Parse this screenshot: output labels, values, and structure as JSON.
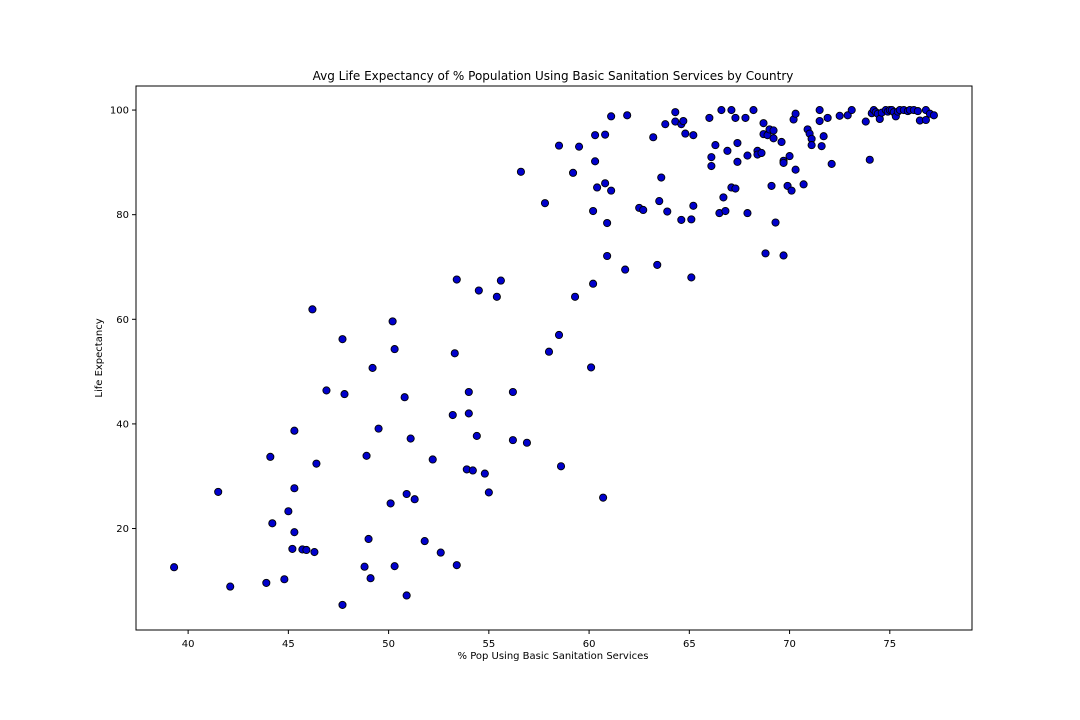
{
  "chart_data": {
    "type": "scatter",
    "title": "Avg Life Expectancy of % Population Using Basic Sanitation Services by Country",
    "xlabel": "% Pop Using Basic Sanitation Services",
    "ylabel": "Life Expectancy",
    "xlim": [
      37.4,
      79.1
    ],
    "ylim": [
      0.6,
      104.6
    ],
    "xticks": [
      40,
      45,
      50,
      55,
      60,
      65,
      70,
      75
    ],
    "yticks": [
      20,
      40,
      60,
      80,
      100
    ],
    "grid": false,
    "marker_color": "#0000cc",
    "marker_edge_color": "#000000",
    "points": [
      [
        39.3,
        12.6
      ],
      [
        41.5,
        27.0
      ],
      [
        42.1,
        8.9
      ],
      [
        43.9,
        9.6
      ],
      [
        44.1,
        33.7
      ],
      [
        44.2,
        21.0
      ],
      [
        44.8,
        10.3
      ],
      [
        45.0,
        23.3
      ],
      [
        45.2,
        16.1
      ],
      [
        45.3,
        38.7
      ],
      [
        45.3,
        27.7
      ],
      [
        45.3,
        19.3
      ],
      [
        45.7,
        16.0
      ],
      [
        45.9,
        15.9
      ],
      [
        46.2,
        61.9
      ],
      [
        46.3,
        15.5
      ],
      [
        46.4,
        32.4
      ],
      [
        46.9,
        46.4
      ],
      [
        47.7,
        56.2
      ],
      [
        47.8,
        45.7
      ],
      [
        47.7,
        5.4
      ],
      [
        48.8,
        12.7
      ],
      [
        48.9,
        33.9
      ],
      [
        49.0,
        18.0
      ],
      [
        49.1,
        10.5
      ],
      [
        49.2,
        50.7
      ],
      [
        49.5,
        39.1
      ],
      [
        50.1,
        24.8
      ],
      [
        50.2,
        59.6
      ],
      [
        50.3,
        54.3
      ],
      [
        50.3,
        12.8
      ],
      [
        50.8,
        45.1
      ],
      [
        50.9,
        26.6
      ],
      [
        50.9,
        7.2
      ],
      [
        51.1,
        37.2
      ],
      [
        51.3,
        25.6
      ],
      [
        51.8,
        17.6
      ],
      [
        52.2,
        33.2
      ],
      [
        52.6,
        15.4
      ],
      [
        53.2,
        41.7
      ],
      [
        53.3,
        53.5
      ],
      [
        53.4,
        67.6
      ],
      [
        53.4,
        13.0
      ],
      [
        53.9,
        31.3
      ],
      [
        54.0,
        42.0
      ],
      [
        54.0,
        46.1
      ],
      [
        54.2,
        31.1
      ],
      [
        54.4,
        37.7
      ],
      [
        54.5,
        65.5
      ],
      [
        54.8,
        30.5
      ],
      [
        55.0,
        26.9
      ],
      [
        55.4,
        64.3
      ],
      [
        55.6,
        67.4
      ],
      [
        56.2,
        46.1
      ],
      [
        56.2,
        36.9
      ],
      [
        56.6,
        88.2
      ],
      [
        56.9,
        36.4
      ],
      [
        57.8,
        82.2
      ],
      [
        58.0,
        53.8
      ],
      [
        58.5,
        93.2
      ],
      [
        58.5,
        57.0
      ],
      [
        58.6,
        31.9
      ],
      [
        59.2,
        88.0
      ],
      [
        59.3,
        64.3
      ],
      [
        59.5,
        93.0
      ],
      [
        60.1,
        50.8
      ],
      [
        60.2,
        66.8
      ],
      [
        60.2,
        80.7
      ],
      [
        60.3,
        95.2
      ],
      [
        60.3,
        90.2
      ],
      [
        60.4,
        85.2
      ],
      [
        60.7,
        25.9
      ],
      [
        60.8,
        86.0
      ],
      [
        60.8,
        95.3
      ],
      [
        60.9,
        78.4
      ],
      [
        60.9,
        72.1
      ],
      [
        61.1,
        98.8
      ],
      [
        61.1,
        84.6
      ],
      [
        61.8,
        69.5
      ],
      [
        61.9,
        99.0
      ],
      [
        62.5,
        81.3
      ],
      [
        62.7,
        80.9
      ],
      [
        63.2,
        94.8
      ],
      [
        63.4,
        70.4
      ],
      [
        63.5,
        82.6
      ],
      [
        63.6,
        87.1
      ],
      [
        63.8,
        97.3
      ],
      [
        63.9,
        80.6
      ],
      [
        64.3,
        99.6
      ],
      [
        64.3,
        97.8
      ],
      [
        64.6,
        97.3
      ],
      [
        64.6,
        79.0
      ],
      [
        64.7,
        97.9
      ],
      [
        64.8,
        95.5
      ],
      [
        65.1,
        79.1
      ],
      [
        65.1,
        68.0
      ],
      [
        65.2,
        95.2
      ],
      [
        65.2,
        81.7
      ],
      [
        66.0,
        98.5
      ],
      [
        66.1,
        91.0
      ],
      [
        66.1,
        89.3
      ],
      [
        66.3,
        93.3
      ],
      [
        66.5,
        80.3
      ],
      [
        66.6,
        100.0
      ],
      [
        66.7,
        83.3
      ],
      [
        66.8,
        80.7
      ],
      [
        66.9,
        92.2
      ],
      [
        67.1,
        100.0
      ],
      [
        67.1,
        85.2
      ],
      [
        67.3,
        98.5
      ],
      [
        67.3,
        85.0
      ],
      [
        67.4,
        93.7
      ],
      [
        67.4,
        90.1
      ],
      [
        67.8,
        98.5
      ],
      [
        67.9,
        91.3
      ],
      [
        67.9,
        80.3
      ],
      [
        68.2,
        100.0
      ],
      [
        68.4,
        92.2
      ],
      [
        68.4,
        91.5
      ],
      [
        68.6,
        91.8
      ],
      [
        68.7,
        95.4
      ],
      [
        68.7,
        97.5
      ],
      [
        68.8,
        72.6
      ],
      [
        68.9,
        95.2
      ],
      [
        69.0,
        96.3
      ],
      [
        69.1,
        85.5
      ],
      [
        69.2,
        94.6
      ],
      [
        69.2,
        96.1
      ],
      [
        69.3,
        78.5
      ],
      [
        69.6,
        93.9
      ],
      [
        69.7,
        90.3
      ],
      [
        69.7,
        89.9
      ],
      [
        69.7,
        72.2
      ],
      [
        69.9,
        85.5
      ],
      [
        70.0,
        91.2
      ],
      [
        70.1,
        84.6
      ],
      [
        70.2,
        98.2
      ],
      [
        70.3,
        99.3
      ],
      [
        70.3,
        88.6
      ],
      [
        70.7,
        85.8
      ],
      [
        70.9,
        96.3
      ],
      [
        71.0,
        95.5
      ],
      [
        71.1,
        94.5
      ],
      [
        71.1,
        93.3
      ],
      [
        71.5,
        100.0
      ],
      [
        71.5,
        97.9
      ],
      [
        71.6,
        93.1
      ],
      [
        71.7,
        95.0
      ],
      [
        71.9,
        98.5
      ],
      [
        72.1,
        89.7
      ],
      [
        72.5,
        98.9
      ],
      [
        72.9,
        99.0
      ],
      [
        73.1,
        100.0
      ],
      [
        73.8,
        97.8
      ],
      [
        74.0,
        90.5
      ],
      [
        74.1,
        99.4
      ],
      [
        74.2,
        100.0
      ],
      [
        74.3,
        99.6
      ],
      [
        74.4,
        99.3
      ],
      [
        74.5,
        98.3
      ],
      [
        74.6,
        99.5
      ],
      [
        74.8,
        100.0
      ],
      [
        74.9,
        99.7
      ],
      [
        75.0,
        100.0
      ],
      [
        75.1,
        100.0
      ],
      [
        75.2,
        99.6
      ],
      [
        75.3,
        98.8
      ],
      [
        75.4,
        99.7
      ],
      [
        75.5,
        100.0
      ],
      [
        75.7,
        100.0
      ],
      [
        75.9,
        99.8
      ],
      [
        76.0,
        100.0
      ],
      [
        76.2,
        100.0
      ],
      [
        76.4,
        99.8
      ],
      [
        76.5,
        98.0
      ],
      [
        76.8,
        98.1
      ],
      [
        76.8,
        100.0
      ],
      [
        77.0,
        99.3
      ],
      [
        77.2,
        99.0
      ]
    ]
  }
}
